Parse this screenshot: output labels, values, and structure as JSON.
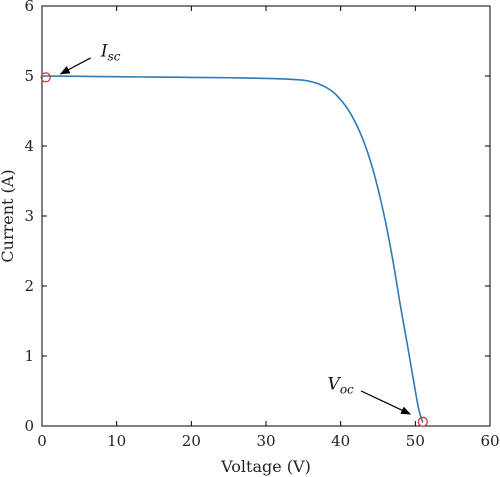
{
  "chart_data": {
    "type": "line",
    "title": "",
    "xlabel": "Voltage (V)",
    "ylabel": "Current (A)",
    "xlim": [
      0,
      60
    ],
    "ylim": [
      0,
      6
    ],
    "xticks": [
      0,
      10,
      20,
      30,
      40,
      50,
      60
    ],
    "yticks": [
      0,
      1,
      2,
      3,
      4,
      5,
      6
    ],
    "grid": false,
    "series": [
      {
        "color": "#2e7bb5",
        "x": [
          0,
          5,
          10,
          15,
          20,
          25,
          30,
          33,
          35,
          36,
          37,
          38,
          39,
          40,
          41,
          42,
          43,
          44,
          45,
          46,
          47,
          48,
          49,
          50,
          50.5,
          51
        ],
        "y": [
          5.0,
          4.995,
          4.99,
          4.985,
          4.98,
          4.975,
          4.965,
          4.955,
          4.94,
          4.92,
          4.89,
          4.84,
          4.77,
          4.66,
          4.52,
          4.33,
          4.09,
          3.78,
          3.39,
          2.92,
          2.36,
          1.72,
          1.12,
          0.5,
          0.22,
          0.05
        ]
      }
    ],
    "markers": [
      {
        "x": 0.5,
        "y": 4.98,
        "color": "#e0312d"
      },
      {
        "x": 51,
        "y": 0.06,
        "color": "#e0312d"
      }
    ],
    "annotations": [
      {
        "main": "I",
        "sub": "sc",
        "x": 9.2,
        "y": 5.28,
        "arrow_to": [
          2.5,
          5.03
        ]
      },
      {
        "main": "V",
        "sub": "oc",
        "x": 40.0,
        "y": 0.52,
        "arrow_to": [
          49.3,
          0.17
        ]
      }
    ]
  }
}
